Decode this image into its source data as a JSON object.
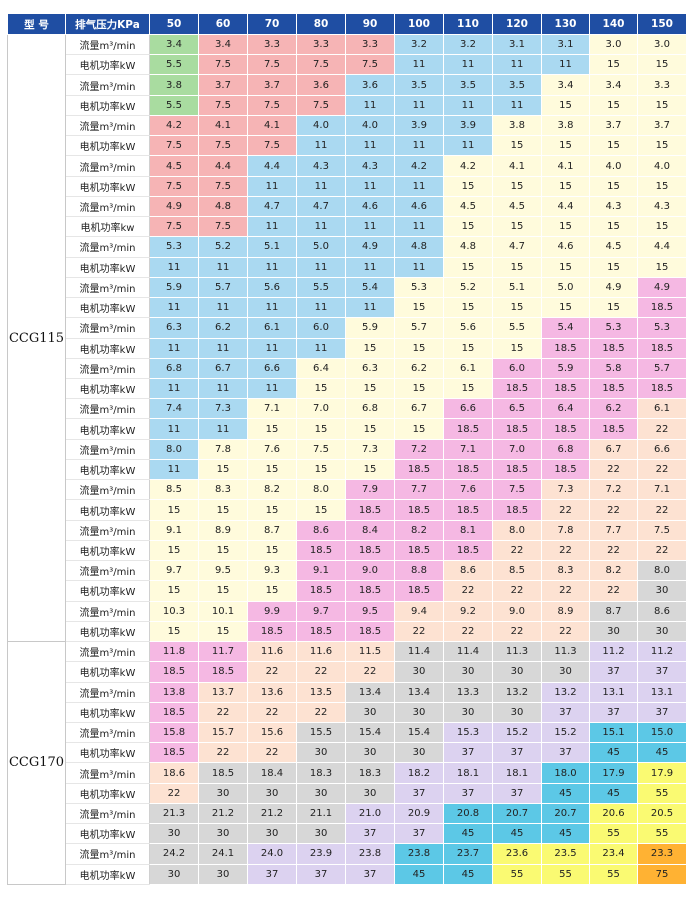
{
  "header": {
    "model_label": "型 号",
    "pressure_label": "排气压力KPa",
    "pressures": [
      "50",
      "60",
      "70",
      "80",
      "90",
      "100",
      "110",
      "120",
      "130",
      "140",
      "150"
    ]
  },
  "colors": {
    "G": "#a9dca0",
    "R": "#f6b4b5",
    "B": "#aad9f1",
    "Y": "#fffbdc",
    "O": "#fde2d2",
    "P": "#f5b8e3",
    "S": "#d7d7d7",
    "L": "#dcd2f0",
    "T": "#5cc8e6",
    "K": "#fafa72",
    "N": "#ffb233",
    "header": "#1f4ea3"
  },
  "groups": [
    {
      "model": "CCG115",
      "rows": [
        {
          "label": "流量m³/min",
          "values": [
            "3.4",
            "3.4",
            "3.3",
            "3.3",
            "3.3",
            "3.2",
            "3.2",
            "3.1",
            "3.1",
            "3.0",
            "3.0"
          ],
          "colors": "GRRRRBBBBYY"
        },
        {
          "label": "电机功率kW",
          "values": [
            "5.5",
            "7.5",
            "7.5",
            "7.5",
            "7.5",
            "11",
            "11",
            "11",
            "11",
            "15",
            "15"
          ],
          "colors": "GRRRRBBBBYY"
        },
        {
          "label": "流量m³/min",
          "values": [
            "3.8",
            "3.7",
            "3.7",
            "3.6",
            "3.6",
            "3.5",
            "3.5",
            "3.5",
            "3.4",
            "3.4",
            "3.3"
          ],
          "colors": "GRRRBBBBYYY"
        },
        {
          "label": "电机功率kW",
          "values": [
            "5.5",
            "7.5",
            "7.5",
            "7.5",
            "11",
            "11",
            "11",
            "11",
            "15",
            "15",
            "15"
          ],
          "colors": "GRRRBBBBYYY"
        },
        {
          "label": "流量m³/min",
          "values": [
            "4.2",
            "4.1",
            "4.1",
            "4.0",
            "4.0",
            "3.9",
            "3.9",
            "3.8",
            "3.8",
            "3.7",
            "3.7"
          ],
          "colors": "RRRBBBBYYYY"
        },
        {
          "label": "电机功率kW",
          "values": [
            "7.5",
            "7.5",
            "7.5",
            "11",
            "11",
            "11",
            "11",
            "15",
            "15",
            "15",
            "15"
          ],
          "colors": "RRRBBBBYYYY"
        },
        {
          "label": "流量m³/min",
          "values": [
            "4.5",
            "4.4",
            "4.4",
            "4.3",
            "4.3",
            "4.2",
            "4.2",
            "4.1",
            "4.1",
            "4.0",
            "4.0"
          ],
          "colors": "RRBBBBYYYYY"
        },
        {
          "label": "电机功率kW",
          "values": [
            "7.5",
            "7.5",
            "11",
            "11",
            "11",
            "11",
            "15",
            "15",
            "15",
            "15",
            "15"
          ],
          "colors": "RRBBBBYYYYY"
        },
        {
          "label": "流量m³/min",
          "values": [
            "4.9",
            "4.8",
            "4.7",
            "4.7",
            "4.6",
            "4.6",
            "4.5",
            "4.5",
            "4.4",
            "4.3",
            "4.3"
          ],
          "colors": "RRBBBBYYYYY"
        },
        {
          "label": "电机功率kw",
          "values": [
            "7.5",
            "7.5",
            "11",
            "11",
            "11",
            "11",
            "15",
            "15",
            "15",
            "15",
            "15"
          ],
          "colors": "RRBBBBYYYYY"
        },
        {
          "label": "流量m³/min",
          "values": [
            "5.3",
            "5.2",
            "5.1",
            "5.0",
            "4.9",
            "4.8",
            "4.8",
            "4.7",
            "4.6",
            "4.5",
            "4.4"
          ],
          "colors": "BBBBBBYYYYY"
        },
        {
          "label": "电机功率kW",
          "values": [
            "11",
            "11",
            "11",
            "11",
            "11",
            "11",
            "15",
            "15",
            "15",
            "15",
            "15"
          ],
          "colors": "BBBBBBYYYYY"
        },
        {
          "label": "流量m³/min",
          "values": [
            "5.9",
            "5.7",
            "5.6",
            "5.5",
            "5.4",
            "5.3",
            "5.2",
            "5.1",
            "5.0",
            "4.9",
            "4.9"
          ],
          "colors": "BBBBBYYYYYP"
        },
        {
          "label": "电机功率kW",
          "values": [
            "11",
            "11",
            "11",
            "11",
            "11",
            "15",
            "15",
            "15",
            "15",
            "15",
            "18.5"
          ],
          "colors": "BBBBBYYYYYP"
        },
        {
          "label": "流量m³/min",
          "values": [
            "6.3",
            "6.2",
            "6.1",
            "6.0",
            "5.9",
            "5.7",
            "5.6",
            "5.5",
            "5.4",
            "5.3",
            "5.3"
          ],
          "colors": "BBBBYYYYPPP"
        },
        {
          "label": "电机功率kW",
          "values": [
            "11",
            "11",
            "11",
            "11",
            "15",
            "15",
            "15",
            "15",
            "18.5",
            "18.5",
            "18.5"
          ],
          "colors": "BBBBYYYYPPP"
        },
        {
          "label": "流量m³/min",
          "values": [
            "6.8",
            "6.7",
            "6.6",
            "6.4",
            "6.3",
            "6.2",
            "6.1",
            "6.0",
            "5.9",
            "5.8",
            "5.7"
          ],
          "colors": "BBBYYYYPPPP"
        },
        {
          "label": "电机功率kW",
          "values": [
            "11",
            "11",
            "11",
            "15",
            "15",
            "15",
            "15",
            "18.5",
            "18.5",
            "18.5",
            "18.5"
          ],
          "colors": "BBBYYYYPPPP"
        },
        {
          "label": "流量m³/min",
          "values": [
            "7.4",
            "7.3",
            "7.1",
            "7.0",
            "6.8",
            "6.7",
            "6.6",
            "6.5",
            "6.4",
            "6.2",
            "6.1"
          ],
          "colors": "BBYYYYPPPPO"
        },
        {
          "label": "电机功率kW",
          "values": [
            "11",
            "11",
            "15",
            "15",
            "15",
            "15",
            "18.5",
            "18.5",
            "18.5",
            "18.5",
            "22"
          ],
          "colors": "BBYYYYPPPPO"
        },
        {
          "label": "流量m³/min",
          "values": [
            "8.0",
            "7.8",
            "7.6",
            "7.5",
            "7.3",
            "7.2",
            "7.1",
            "7.0",
            "6.8",
            "6.7",
            "6.6"
          ],
          "colors": "BYYYYPPPPOO"
        },
        {
          "label": "电机功率kW",
          "values": [
            "11",
            "15",
            "15",
            "15",
            "15",
            "18.5",
            "18.5",
            "18.5",
            "18.5",
            "22",
            "22"
          ],
          "colors": "BYYYYPPPPOO"
        },
        {
          "label": "流量m³/min",
          "values": [
            "8.5",
            "8.3",
            "8.2",
            "8.0",
            "7.9",
            "7.7",
            "7.6",
            "7.5",
            "7.3",
            "7.2",
            "7.1"
          ],
          "colors": "YYYYPPPPOOO"
        },
        {
          "label": "电机功率kW",
          "values": [
            "15",
            "15",
            "15",
            "15",
            "18.5",
            "18.5",
            "18.5",
            "18.5",
            "22",
            "22",
            "22"
          ],
          "colors": "YYYYPPPPOOO"
        },
        {
          "label": "流量m³/min",
          "values": [
            "9.1",
            "8.9",
            "8.7",
            "8.6",
            "8.4",
            "8.2",
            "8.1",
            "8.0",
            "7.8",
            "7.7",
            "7.5"
          ],
          "colors": "YYYPPPPOOOO"
        },
        {
          "label": "电机功率kW",
          "values": [
            "15",
            "15",
            "15",
            "18.5",
            "18.5",
            "18.5",
            "18.5",
            "22",
            "22",
            "22",
            "22"
          ],
          "colors": "YYYPPPPOOOO"
        },
        {
          "label": "流量m³/min",
          "values": [
            "9.7",
            "9.5",
            "9.3",
            "9.1",
            "9.0",
            "8.8",
            "8.6",
            "8.5",
            "8.3",
            "8.2",
            "8.0"
          ],
          "colors": "YYYPPPOOOOS"
        },
        {
          "label": "电机功率kW",
          "values": [
            "15",
            "15",
            "15",
            "18.5",
            "18.5",
            "18.5",
            "22",
            "22",
            "22",
            "22",
            "30"
          ],
          "colors": "YYYPPPOOOOS"
        },
        {
          "label": "流量m³/min",
          "values": [
            "10.3",
            "10.1",
            "9.9",
            "9.7",
            "9.5",
            "9.4",
            "9.2",
            "9.0",
            "8.9",
            "8.7",
            "8.6"
          ],
          "colors": "YYPPPOOOOSS"
        },
        {
          "label": "电机功率kW",
          "values": [
            "15",
            "15",
            "18.5",
            "18.5",
            "18.5",
            "22",
            "22",
            "22",
            "22",
            "30",
            "30"
          ],
          "colors": "YYPPPOOOOSS"
        }
      ]
    },
    {
      "model": "CCG170",
      "rows": [
        {
          "label": "流量m³/min",
          "values": [
            "11.8",
            "11.7",
            "11.6",
            "11.6",
            "11.5",
            "11.4",
            "11.4",
            "11.3",
            "11.3",
            "11.2",
            "11.2"
          ],
          "colors": "PPOOOSSSSLL"
        },
        {
          "label": "电机功率kW",
          "values": [
            "18.5",
            "18.5",
            "22",
            "22",
            "22",
            "30",
            "30",
            "30",
            "30",
            "37",
            "37"
          ],
          "colors": "PPOOOSSSSLL"
        },
        {
          "label": "流量m³/min",
          "values": [
            "13.8",
            "13.7",
            "13.6",
            "13.5",
            "13.4",
            "13.4",
            "13.3",
            "13.2",
            "13.2",
            "13.1",
            "13.1"
          ],
          "colors": "POOOSSSSLLL"
        },
        {
          "label": "电机功率kW",
          "values": [
            "18.5",
            "22",
            "22",
            "22",
            "30",
            "30",
            "30",
            "30",
            "37",
            "37",
            "37"
          ],
          "colors": "POOOSSSSLLL"
        },
        {
          "label": "流量m³/min",
          "values": [
            "15.8",
            "15.7",
            "15.6",
            "15.5",
            "15.4",
            "15.4",
            "15.3",
            "15.2",
            "15.2",
            "15.1",
            "15.0"
          ],
          "colors": "POOSSSLLLTT"
        },
        {
          "label": "电机功率kW",
          "values": [
            "18.5",
            "22",
            "22",
            "30",
            "30",
            "30",
            "37",
            "37",
            "37",
            "45",
            "45"
          ],
          "colors": "POOSSSLLLTT"
        },
        {
          "label": "流量m³/min",
          "values": [
            "18.6",
            "18.5",
            "18.4",
            "18.3",
            "18.3",
            "18.2",
            "18.1",
            "18.1",
            "18.0",
            "17.9",
            "17.9"
          ],
          "colors": "OSSSSLLLTTK"
        },
        {
          "label": "电机功率kW",
          "values": [
            "22",
            "30",
            "30",
            "30",
            "30",
            "37",
            "37",
            "37",
            "45",
            "45",
            "55"
          ],
          "colors": "OSSSSLLLTTK"
        },
        {
          "label": "流量m³/min",
          "values": [
            "21.3",
            "21.2",
            "21.2",
            "21.1",
            "21.0",
            "20.9",
            "20.8",
            "20.7",
            "20.7",
            "20.6",
            "20.5"
          ],
          "colors": "SSSSLLTTTKK"
        },
        {
          "label": "电机功率kW",
          "values": [
            "30",
            "30",
            "30",
            "30",
            "37",
            "37",
            "45",
            "45",
            "45",
            "55",
            "55"
          ],
          "colors": "SSSSLLTTTKK"
        },
        {
          "label": "流量m³/min",
          "values": [
            "24.2",
            "24.1",
            "24.0",
            "23.9",
            "23.8",
            "23.8",
            "23.7",
            "23.6",
            "23.5",
            "23.4",
            "23.3"
          ],
          "colors": "SSLLLTTKKKN"
        },
        {
          "label": "电机功率kW",
          "values": [
            "30",
            "30",
            "37",
            "37",
            "37",
            "45",
            "45",
            "55",
            "55",
            "55",
            "75"
          ],
          "colors": "SSLLLTTKKKN"
        }
      ]
    }
  ]
}
